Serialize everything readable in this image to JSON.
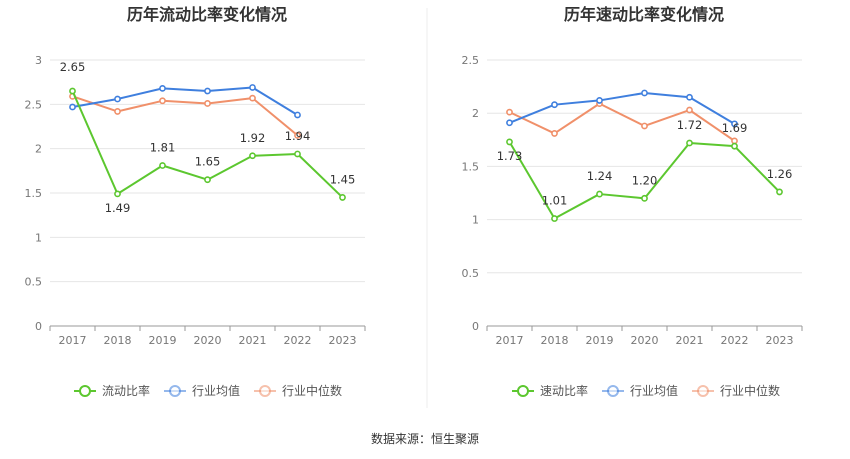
{
  "source_label": "数据来源：恒生聚源",
  "colors": {
    "main": "#5cc72f",
    "avg": "#3f7fde",
    "median": "#f0906a",
    "grid": "#e6e6e6",
    "axis": "#999999"
  },
  "chart_data": [
    {
      "type": "line",
      "title": "历年流动比率变化情况",
      "categories": [
        "2017",
        "2018",
        "2019",
        "2020",
        "2021",
        "2022",
        "2023"
      ],
      "ylim": [
        0,
        3
      ],
      "yticks": [
        "0",
        "0.5",
        "1",
        "1.5",
        "2",
        "2.5",
        "3"
      ],
      "grid": true,
      "legend_position": "bottom",
      "series": [
        {
          "name": "流动比率",
          "values": [
            2.65,
            1.49,
            1.81,
            1.65,
            1.92,
            1.94,
            1.45
          ],
          "labels": [
            "2.65",
            "1.49",
            "1.81",
            "1.65",
            "1.92",
            "1.94",
            "1.45"
          ]
        },
        {
          "name": "行业均值",
          "values": [
            2.47,
            2.56,
            2.68,
            2.65,
            2.69,
            2.38,
            null
          ]
        },
        {
          "name": "行业中位数",
          "values": [
            2.59,
            2.42,
            2.54,
            2.51,
            2.57,
            2.15,
            null
          ]
        }
      ]
    },
    {
      "type": "line",
      "title": "历年速动比率变化情况",
      "categories": [
        "2017",
        "2018",
        "2019",
        "2020",
        "2021",
        "2022",
        "2023"
      ],
      "ylim": [
        0,
        2.5
      ],
      "yticks": [
        "0",
        "0.5",
        "1",
        "1.5",
        "2",
        "2.5"
      ],
      "grid": true,
      "legend_position": "bottom",
      "series": [
        {
          "name": "速动比率",
          "values": [
            1.73,
            1.01,
            1.24,
            1.2,
            1.72,
            1.69,
            1.26
          ],
          "labels": [
            "1.73",
            "1.01",
            "1.24",
            "1.20",
            "1.72",
            "1.69",
            "1.26"
          ]
        },
        {
          "name": "行业均值",
          "values": [
            1.91,
            2.08,
            2.12,
            2.19,
            2.15,
            1.9,
            null
          ]
        },
        {
          "name": "行业中位数",
          "values": [
            2.01,
            1.81,
            2.09,
            1.88,
            2.03,
            1.74,
            null
          ]
        }
      ]
    }
  ]
}
